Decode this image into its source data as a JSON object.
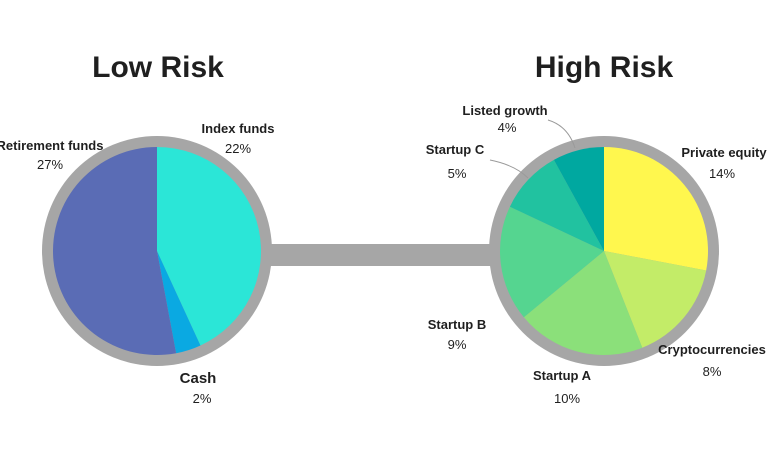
{
  "chart_data": [
    {
      "type": "pie",
      "title": "Low Risk",
      "colors": {
        "ring": "#a6a6a6"
      },
      "slices": [
        {
          "label": "Retirement funds",
          "value": 27,
          "value_label": "27%",
          "color": "#5a6cb5"
        },
        {
          "label": "Index funds",
          "value": 22,
          "value_label": "22%",
          "color": "#2be6d7"
        },
        {
          "label": "Cash",
          "value": 2,
          "value_label": "2%",
          "color": "#0aa9e2"
        }
      ]
    },
    {
      "type": "pie",
      "title": "High Risk",
      "colors": {
        "ring": "#a6a6a6"
      },
      "slices": [
        {
          "label": "Private equity",
          "value": 14,
          "value_label": "14%",
          "color": "#fff74e"
        },
        {
          "label": "Cryptocurrencies",
          "value": 8,
          "value_label": "8%",
          "color": "#c3ec68"
        },
        {
          "label": "Startup A",
          "value": 10,
          "value_label": "10%",
          "color": "#8be07a"
        },
        {
          "label": "Startup B",
          "value": 9,
          "value_label": "9%",
          "color": "#55d590"
        },
        {
          "label": "Startup C",
          "value": 5,
          "value_label": "5%",
          "color": "#21c2a0"
        },
        {
          "label": "Listed growth",
          "value": 4,
          "value_label": "4%",
          "color": "#00a8a0"
        }
      ]
    }
  ]
}
